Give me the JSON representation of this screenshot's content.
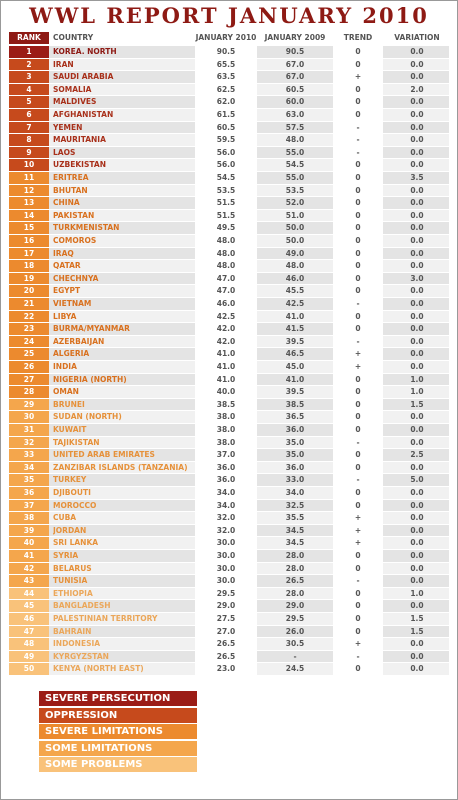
{
  "header": {
    "title": "WWL REPORT JANUARY 2010"
  },
  "table": {
    "columns": [
      "RANK",
      "COUNTRY",
      "JANUARY 2010",
      "JANUARY 2009",
      "TREND",
      "VARIATION"
    ],
    "rows": [
      [
        "1",
        "KOREA. NORTH",
        "90.5",
        "90.5",
        "0",
        "0.0"
      ],
      [
        "2",
        "IRAN",
        "65.5",
        "67.0",
        "0",
        "0.0"
      ],
      [
        "3",
        "SAUDI ARABIA",
        "63.5",
        "67.0",
        "+",
        "0.0"
      ],
      [
        "4",
        "SOMALIA",
        "62.5",
        "60.5",
        "0",
        "2.0"
      ],
      [
        "5",
        "MALDIVES",
        "62.0",
        "60.0",
        "0",
        "0.0"
      ],
      [
        "6",
        "AFGHANISTAN",
        "61.5",
        "63.0",
        "0",
        "0.0"
      ],
      [
        "7",
        "YEMEN",
        "60.5",
        "57.5",
        "-",
        "0.0"
      ],
      [
        "8",
        "MAURITANIA",
        "59.5",
        "48.0",
        "-",
        "0.0"
      ],
      [
        "9",
        "LAOS",
        "56.0",
        "55.0",
        "-",
        "0.0"
      ],
      [
        "10",
        "UZBEKISTAN",
        "56.0",
        "54.5",
        "0",
        "0.0"
      ],
      [
        "11",
        "ERITREA",
        "54.5",
        "55.0",
        "0",
        "3.5"
      ],
      [
        "12",
        "BHUTAN",
        "53.5",
        "53.5",
        "0",
        "0.0"
      ],
      [
        "13",
        "CHINA",
        "51.5",
        "52.0",
        "0",
        "0.0"
      ],
      [
        "14",
        "PAKISTAN",
        "51.5",
        "51.0",
        "0",
        "0.0"
      ],
      [
        "15",
        "TURKMENISTAN",
        "49.5",
        "50.0",
        "0",
        "0.0"
      ],
      [
        "16",
        "COMOROS",
        "48.0",
        "50.0",
        "0",
        "0.0"
      ],
      [
        "17",
        "IRAQ",
        "48.0",
        "49.0",
        "0",
        "0.0"
      ],
      [
        "18",
        "QATAR",
        "48.0",
        "48.0",
        "0",
        "0.0"
      ],
      [
        "19",
        "CHECHNYA",
        "47.0",
        "46.0",
        "0",
        "3.0"
      ],
      [
        "20",
        "EGYPT",
        "47.0",
        "45.5",
        "0",
        "0.0"
      ],
      [
        "21",
        "VIETNAM",
        "46.0",
        "42.5",
        "-",
        "0.0"
      ],
      [
        "22",
        "LIBYA",
        "42.5",
        "41.0",
        "0",
        "0.0"
      ],
      [
        "23",
        "BURMA/MYANMAR",
        "42.0",
        "41.5",
        "0",
        "0.0"
      ],
      [
        "24",
        "AZERBAIJAN",
        "42.0",
        "39.5",
        "-",
        "0.0"
      ],
      [
        "25",
        "ALGERIA",
        "41.0",
        "46.5",
        "+",
        "0.0"
      ],
      [
        "26",
        "INDIA",
        "41.0",
        "45.0",
        "+",
        "0.0"
      ],
      [
        "27",
        "NIGERIA (NORTH)",
        "41.0",
        "41.0",
        "0",
        "1.0"
      ],
      [
        "28",
        "OMAN",
        "40.0",
        "39.5",
        "0",
        "1.0"
      ],
      [
        "29",
        "BRUNEI",
        "38.5",
        "38.5",
        "0",
        "1.5"
      ],
      [
        "30",
        "SUDAN (NORTH)",
        "38.0",
        "36.5",
        "0",
        "0.0"
      ],
      [
        "31",
        "KUWAIT",
        "38.0",
        "36.0",
        "0",
        "0.0"
      ],
      [
        "32",
        "TAJIKISTAN",
        "38.0",
        "35.0",
        "-",
        "0.0"
      ],
      [
        "33",
        "UNITED ARAB EMIRATES",
        "37.0",
        "35.0",
        "0",
        "2.5"
      ],
      [
        "34",
        "ZANZIBAR ISLANDS (TANZANIA)",
        "36.0",
        "36.0",
        "0",
        "0.0"
      ],
      [
        "35",
        "TURKEY",
        "36.0",
        "33.0",
        "-",
        "5.0"
      ],
      [
        "36",
        "DJIBOUTI",
        "34.0",
        "34.0",
        "0",
        "0.0"
      ],
      [
        "37",
        "MOROCCO",
        "34.0",
        "32.5",
        "0",
        "0.0"
      ],
      [
        "38",
        "CUBA",
        "32.0",
        "35.5",
        "+",
        "0.0"
      ],
      [
        "39",
        "JORDAN",
        "32.0",
        "34.5",
        "+",
        "0.0"
      ],
      [
        "40",
        "SRI LANKA",
        "30.0",
        "34.5",
        "+",
        "0.0"
      ],
      [
        "41",
        "SYRIA",
        "30.0",
        "28.0",
        "0",
        "0.0"
      ],
      [
        "42",
        "BELARUS",
        "30.0",
        "28.0",
        "0",
        "0.0"
      ],
      [
        "43",
        "TUNISIA",
        "30.0",
        "26.5",
        "-",
        "0.0"
      ],
      [
        "44",
        "ETHIOPIA",
        "29.5",
        "28.0",
        "0",
        "1.0"
      ],
      [
        "45",
        "BANGLADESH",
        "29.0",
        "29.0",
        "0",
        "0.0"
      ],
      [
        "46",
        "PALESTINIAN TERRITORY",
        "27.5",
        "29.5",
        "0",
        "1.5"
      ],
      [
        "47",
        "BAHRAIN",
        "27.0",
        "26.0",
        "0",
        "1.5"
      ],
      [
        "48",
        "INDONESIA",
        "26.5",
        "30.5",
        "+",
        "0.0"
      ],
      [
        "49",
        "KYRGYZSTAN",
        "26.5",
        "-",
        "-",
        "0.0"
      ],
      [
        "50",
        "KENYA (NORTH EAST)",
        "23.0",
        "24.5",
        "0",
        "0.0"
      ]
    ]
  },
  "legend": {
    "items": [
      "SEVERE PERSECUTION",
      "OPPRESSION",
      "SEVERE LIMITATIONS",
      "SOME LIMITATIONS",
      "SOME PROBLEMS"
    ]
  }
}
